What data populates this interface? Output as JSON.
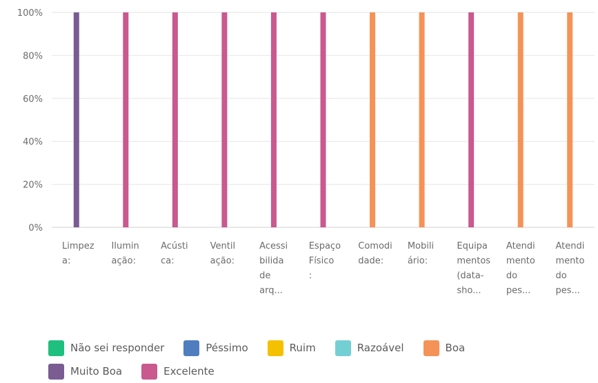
{
  "chart_data": {
    "type": "bar",
    "stacked": true,
    "y_axis": {
      "ticks": [
        "0%",
        "20%",
        "40%",
        "60%",
        "80%",
        "100%"
      ],
      "ylim": [
        0,
        100
      ]
    },
    "categories": [
      [
        "Limpez",
        "a:"
      ],
      [
        "Ilumin",
        "ação:"
      ],
      [
        "Acústi",
        "ca:"
      ],
      [
        "Ventil",
        "ação:"
      ],
      [
        "Acessi",
        "bilida",
        "de",
        "arq..."
      ],
      [
        "Espaço",
        "Físico",
        ":"
      ],
      [
        "Comodi",
        "dade:"
      ],
      [
        "Mobili",
        "ário:"
      ],
      [
        "Equipa",
        "mentos",
        "(data-",
        "sho..."
      ],
      [
        "Atendi",
        "mento",
        "do",
        "pes..."
      ],
      [
        "Atendi",
        "mento",
        "do",
        "pes..."
      ]
    ],
    "series": [
      {
        "name": "Não sei responder",
        "color": "#1fbf7f",
        "values": [
          0,
          0,
          0,
          0,
          0,
          0,
          0,
          0,
          0,
          0,
          0
        ]
      },
      {
        "name": "Péssimo",
        "color": "#4f7dbf",
        "values": [
          0,
          0,
          0,
          0,
          0,
          0,
          0,
          0,
          0,
          0,
          0
        ]
      },
      {
        "name": "Ruim",
        "color": "#f5c000",
        "values": [
          0,
          0,
          0,
          0,
          0,
          0,
          0,
          0,
          0,
          0,
          0
        ]
      },
      {
        "name": "Razoável",
        "color": "#73cfd4",
        "values": [
          0,
          0,
          0,
          0,
          0,
          0,
          0,
          0,
          0,
          0,
          0
        ]
      },
      {
        "name": "Boa",
        "color": "#f59257",
        "values": [
          0,
          0,
          0,
          0,
          0,
          0,
          100,
          100,
          0,
          100,
          100
        ]
      },
      {
        "name": "Muito Boa",
        "color": "#7a5c93",
        "values": [
          100,
          0,
          0,
          0,
          0,
          0,
          0,
          0,
          0,
          0,
          0
        ]
      },
      {
        "name": "Excelente",
        "color": "#c9598f",
        "values": [
          0,
          100,
          100,
          100,
          100,
          100,
          0,
          0,
          100,
          0,
          0
        ]
      }
    ],
    "grid": true,
    "legend_position": "bottom"
  }
}
